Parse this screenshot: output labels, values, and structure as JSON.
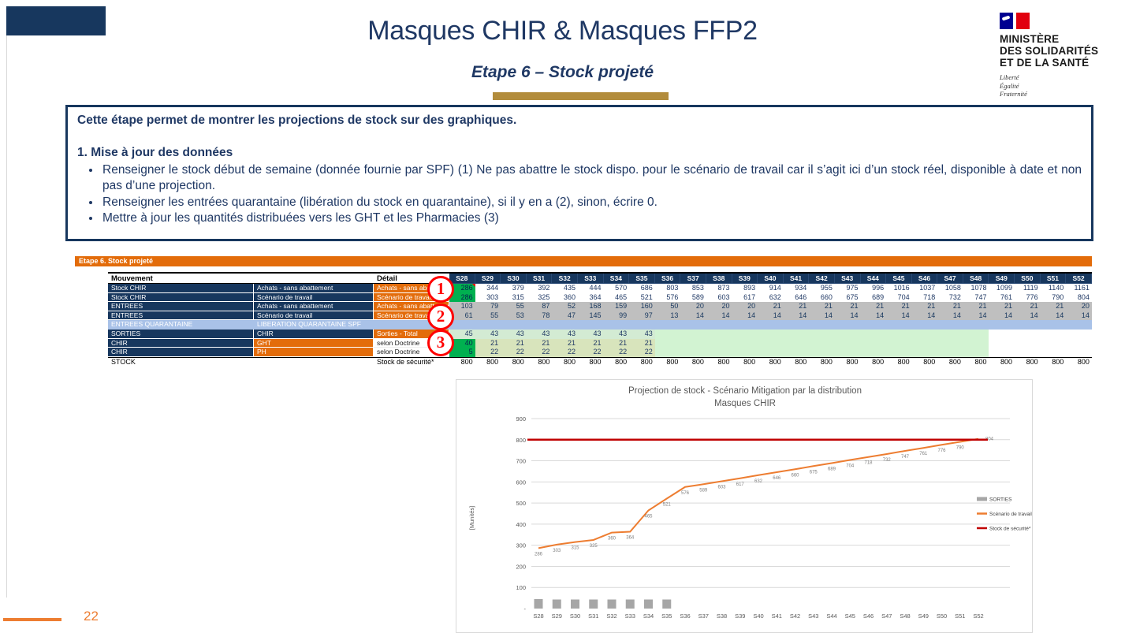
{
  "slide": {
    "title": "Masques CHIR & Masques FFP2",
    "subtitle": "Etape 6 – Stock projeté",
    "page_number": "22"
  },
  "logo": {
    "ministry": [
      "MINISTÈRE",
      "DES SOLIDARITÉS",
      "ET DE LA SANTÉ"
    ],
    "motto": [
      "Liberté",
      "Égalité",
      "Fraternité"
    ]
  },
  "instructions": {
    "intro": "Cette étape permet de montrer les projections de stock sur des graphiques.",
    "heading": "1. Mise à jour des données",
    "bullets": [
      "Renseigner le stock début de semaine (donnée fournie par SPF) (1) Ne pas abattre le stock dispo. pour le scénario de travail car il s’agit ici d’un stock réel, disponible à date et non pas d’une projection.",
      "Renseigner les entrées quarantaine (libération du stock en quarantaine), si il y en a (2), sinon, écrire 0.",
      "Mettre à jour les quantités distribuées vers les GHT et les Pharmacies (3)"
    ]
  },
  "banner": {
    "label": "Etape 6. Stock projeté"
  },
  "callouts": [
    "1",
    "2",
    "3"
  ],
  "table": {
    "header": {
      "mouvement": "Mouvement",
      "detail": "Détail"
    },
    "weeks": [
      "S28",
      "S29",
      "S30",
      "S31",
      "S32",
      "S33",
      "S34",
      "S35",
      "S36",
      "S37",
      "S38",
      "S39",
      "S40",
      "S41",
      "S42",
      "S43",
      "S44",
      "S45",
      "S46",
      "S47",
      "S48",
      "S49",
      "S50",
      "S51",
      "S52"
    ],
    "rows": [
      {
        "kind": "stock1",
        "c1": "Stock CHIR",
        "c2": "Achats - sans abattement",
        "c3": "Achats - sans abattement",
        "values": [
          286,
          344,
          379,
          392,
          435,
          444,
          570,
          686,
          803,
          853,
          873,
          893,
          914,
          934,
          955,
          975,
          996,
          1016,
          1037,
          1058,
          1078,
          1099,
          1119,
          1140,
          1161
        ]
      },
      {
        "kind": "stock2",
        "c1": "Stock CHIR",
        "c2": "Scénario de travail",
        "c3": "Scénario de travail",
        "values": [
          286,
          303,
          315,
          325,
          360,
          364,
          465,
          521,
          576,
          589,
          603,
          617,
          632,
          646,
          660,
          675,
          689,
          704,
          718,
          732,
          747,
          761,
          776,
          790,
          804
        ]
      },
      {
        "kind": "gray",
        "c1": "ENTREES",
        "c2": "Achats - sans abattement",
        "c3": "Achats - sans abattement",
        "values": [
          103,
          79,
          55,
          87,
          52,
          168,
          159,
          160,
          50,
          20,
          20,
          20,
          21,
          21,
          21,
          21,
          21,
          21,
          21,
          21,
          21,
          21,
          21,
          21,
          20
        ]
      },
      {
        "kind": "gray",
        "c1": "ENTREES",
        "c2": "Scénario de travail",
        "c3": "Scénario de travail",
        "values": [
          61,
          55,
          53,
          78,
          47,
          145,
          99,
          97,
          13,
          14,
          14,
          14,
          14,
          14,
          14,
          14,
          14,
          14,
          14,
          14,
          14,
          14,
          14,
          14,
          14
        ]
      },
      {
        "kind": "quar",
        "c1": "ENTREES QUARANTAINE",
        "c2": "LIBERATION QUARANTAINE SPF",
        "c3": "",
        "values": []
      },
      {
        "kind": "sorties",
        "c1": "SORTIES",
        "c2": "CHIR",
        "c3": "Sorties - Total",
        "values": [
          45,
          43,
          43,
          43,
          43,
          43,
          43,
          43
        ]
      },
      {
        "kind": "doctr",
        "c1": "CHIR",
        "c2": "GHT",
        "c3": "selon Doctrine",
        "values": [
          40,
          21,
          21,
          21,
          21,
          21,
          21,
          21
        ]
      },
      {
        "kind": "doctr",
        "c1": "CHIR",
        "c2": "PH",
        "c3": "selon Doctrine",
        "values": [
          5,
          22,
          22,
          22,
          22,
          22,
          22,
          22
        ]
      },
      {
        "kind": "sec",
        "c1": "STOCK",
        "c2": "",
        "c3": "Stock de sécurité*",
        "values": [
          800,
          800,
          800,
          800,
          800,
          800,
          800,
          800,
          800,
          800,
          800,
          800,
          800,
          800,
          800,
          800,
          800,
          800,
          800,
          800,
          800,
          800,
          800,
          800,
          800
        ]
      }
    ]
  },
  "chart_data": {
    "type": "line",
    "title": "Projection de stock - Scénario Mitigation par la distribution",
    "subtitle": "Masques CHIR",
    "ylabel": "[Munités]",
    "ylim": [
      0,
      900
    ],
    "ytick_step": 100,
    "zero_tick_label": "-",
    "grid": true,
    "legend_position": "right",
    "categories": [
      "S28",
      "S29",
      "S30",
      "S31",
      "S32",
      "S33",
      "S34",
      "S35",
      "S36",
      "S37",
      "S38",
      "S39",
      "S40",
      "S41",
      "S42",
      "S43",
      "S44",
      "S45",
      "S46",
      "S47",
      "S48",
      "S49",
      "S50",
      "S51",
      "S52"
    ],
    "series": [
      {
        "name": "SORTIES",
        "type": "bar",
        "color": "#A6A6A6",
        "values": [
          45,
          43,
          43,
          43,
          43,
          43,
          43,
          43
        ]
      },
      {
        "name": "Scénario de travail",
        "type": "line",
        "color": "#ED7D31",
        "point_labels": true,
        "values": [
          286,
          303,
          315,
          325,
          360,
          364,
          465,
          521,
          576,
          589,
          603,
          617,
          632,
          646,
          660,
          675,
          689,
          704,
          718,
          732,
          747,
          761,
          776,
          790,
          804
        ]
      },
      {
        "name": "Stock de sécurité*",
        "type": "line",
        "color": "#C00000",
        "values": [
          800,
          800,
          800,
          800,
          800,
          800,
          800,
          800,
          800,
          800,
          800,
          800,
          800,
          800,
          800,
          800,
          800,
          800,
          800,
          800,
          800,
          800,
          800,
          800,
          800
        ]
      }
    ]
  },
  "colors": {
    "navy": "#17375E",
    "orange": "#E36C0A",
    "bright_green": "#00B050",
    "security_red": "#C00000",
    "gold": "#B28C3C",
    "page_accent": "#ED7D31"
  }
}
